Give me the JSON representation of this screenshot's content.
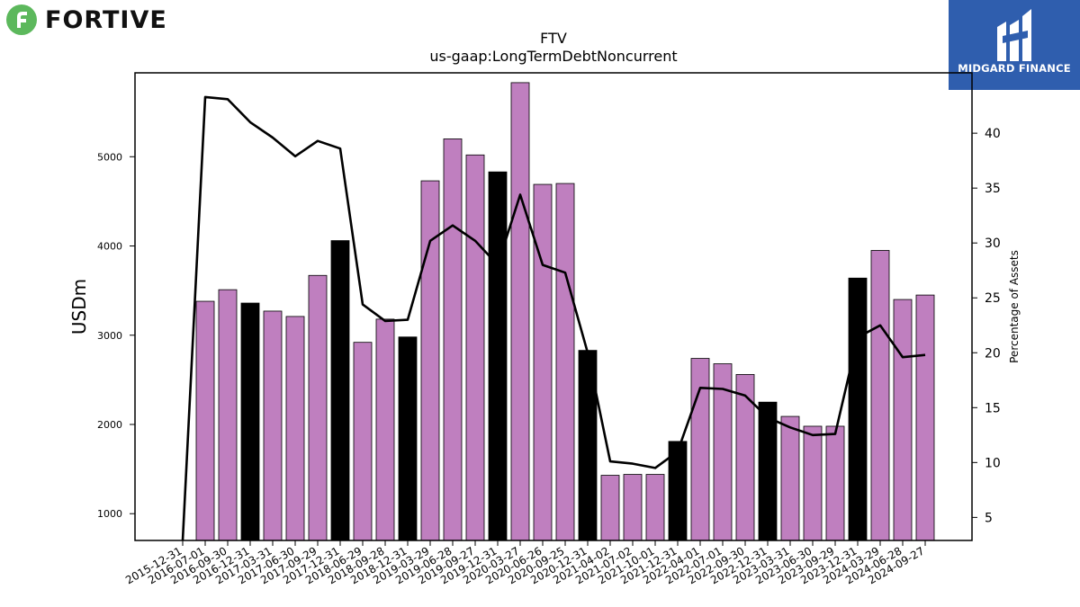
{
  "logos": {
    "left_brand": "FORTIVE",
    "right_brand": "MIDGARD FINANCE"
  },
  "colors": {
    "highlight_bar": "#000000",
    "default_bar": "#bf7fbf",
    "line": "#000000",
    "brand_green": "#5cb85c",
    "brand_blue": "#2f5eae"
  },
  "chart_data": {
    "type": "bar",
    "title": "FTV",
    "subtitle": "us-gaap:LongTermDebtNoncurrent",
    "ylabel": "USDm",
    "y2label": "Percentage of Assets",
    "ylim": [
      700,
      5940
    ],
    "y2lim": [
      2.9,
      45.5
    ],
    "yticks": [
      1000,
      2000,
      3000,
      4000,
      5000
    ],
    "y2ticks": [
      5,
      10,
      15,
      20,
      25,
      30,
      35,
      40
    ],
    "grid": false,
    "categories": [
      "2015-12-31",
      "2016-07-01",
      "2016-09-30",
      "2016-12-31",
      "2017-03-31",
      "2017-06-30",
      "2017-09-29",
      "2017-12-31",
      "2018-06-29",
      "2018-09-28",
      "2018-12-31",
      "2019-03-29",
      "2019-06-28",
      "2019-09-27",
      "2019-12-31",
      "2020-03-27",
      "2020-06-26",
      "2020-09-25",
      "2020-12-31",
      "2021-04-02",
      "2021-07-02",
      "2021-10-01",
      "2021-12-31",
      "2022-04-01",
      "2022-07-01",
      "2022-09-30",
      "2022-12-31",
      "2023-03-31",
      "2023-06-30",
      "2023-09-29",
      "2023-12-31",
      "2024-03-29",
      "2024-06-28",
      "2024-09-27"
    ],
    "series": [
      {
        "chart": "bar",
        "values": [
          null,
          3380,
          3510,
          3360,
          3270,
          3210,
          3670,
          4060,
          2920,
          3180,
          2980,
          4730,
          5200,
          5020,
          4830,
          5830,
          4690,
          4700,
          2830,
          1430,
          1440,
          1440,
          1810,
          2740,
          2680,
          2560,
          2250,
          2090,
          1980,
          1980,
          3640,
          3950,
          3400,
          3450
        ],
        "highlight": [
          false,
          false,
          false,
          true,
          false,
          false,
          false,
          true,
          false,
          false,
          true,
          false,
          false,
          false,
          true,
          false,
          false,
          false,
          true,
          false,
          false,
          false,
          true,
          false,
          false,
          false,
          true,
          false,
          false,
          false,
          true,
          false,
          false,
          false
        ]
      },
      {
        "chart": "line",
        "axis": "right",
        "values": [
          2.9,
          43.3,
          43.1,
          41.0,
          39.6,
          37.9,
          39.3,
          38.6,
          24.4,
          22.9,
          23.0,
          30.2,
          31.6,
          30.2,
          28.0,
          34.4,
          28.0,
          27.3,
          20.0,
          10.1,
          9.9,
          9.5,
          11.0,
          16.8,
          16.7,
          16.1,
          14.1,
          13.2,
          12.5,
          12.6,
          21.4,
          22.5,
          19.6,
          19.8
        ]
      }
    ]
  }
}
